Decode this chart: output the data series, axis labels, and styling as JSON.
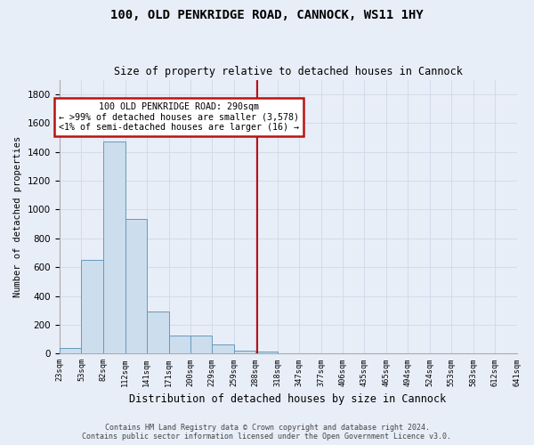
{
  "title": "100, OLD PENKRIDGE ROAD, CANNOCK, WS11 1HY",
  "subtitle": "Size of property relative to detached houses in Cannock",
  "xlabel": "Distribution of detached houses by size in Cannock",
  "ylabel": "Number of detached properties",
  "bar_color": "#ccdded",
  "bar_edge_color": "#6699bb",
  "bin_edges": [
    23,
    53,
    82,
    112,
    141,
    171,
    200,
    229,
    259,
    288,
    318,
    347,
    377,
    406,
    435,
    465,
    494,
    524,
    553,
    583,
    612
  ],
  "counts": [
    40,
    652,
    1472,
    937,
    290,
    127,
    127,
    62,
    22,
    15,
    0,
    0,
    0,
    0,
    0,
    0,
    0,
    0,
    0,
    0
  ],
  "property_size": 290,
  "vline_color": "#bb1111",
  "annotation_text": "100 OLD PENKRIDGE ROAD: 290sqm\n← >99% of detached houses are smaller (3,578)\n<1% of semi-detached houses are larger (16) →",
  "annotation_box_color": "#bb1111",
  "annotation_bg": "#ffffff",
  "ylim": [
    0,
    1900
  ],
  "yticks": [
    0,
    200,
    400,
    600,
    800,
    1000,
    1200,
    1400,
    1600,
    1800
  ],
  "footnote": "Contains HM Land Registry data © Crown copyright and database right 2024.\nContains public sector information licensed under the Open Government Licence v3.0.",
  "grid_color": "#d0d8e8",
  "bg_color": "#e8eef8"
}
